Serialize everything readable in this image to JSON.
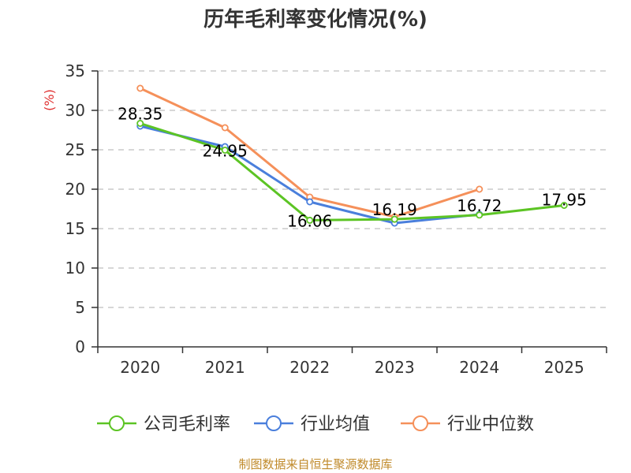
{
  "chart_data": {
    "type": "line",
    "title": "历年毛利率变化情况(%)",
    "ylabel": "(%)",
    "xlabel": "",
    "categories": [
      "2020",
      "2021",
      "2022",
      "2023",
      "2024",
      "2025"
    ],
    "ylim": [
      0,
      35
    ],
    "yticks": [
      0,
      5,
      10,
      15,
      20,
      25,
      30,
      35
    ],
    "grid": true,
    "legend_position": "bottom",
    "series": [
      {
        "name": "公司毛利率",
        "color": "#5cc424",
        "values": [
          28.35,
          24.95,
          16.06,
          16.19,
          16.72,
          17.95
        ],
        "labels": [
          "28.35",
          "24.95",
          "16.06",
          "16.19",
          "16.72",
          "17.95"
        ]
      },
      {
        "name": "行业均值",
        "color": "#4a7fdc",
        "values": [
          28.0,
          25.4,
          18.4,
          15.7,
          16.8,
          null
        ]
      },
      {
        "name": "行业中位数",
        "color": "#f5905a",
        "values": [
          32.8,
          27.8,
          19.0,
          16.5,
          20.0,
          null
        ]
      }
    ]
  },
  "footer": {
    "source": "制图数据来自恒生聚源数据库"
  }
}
